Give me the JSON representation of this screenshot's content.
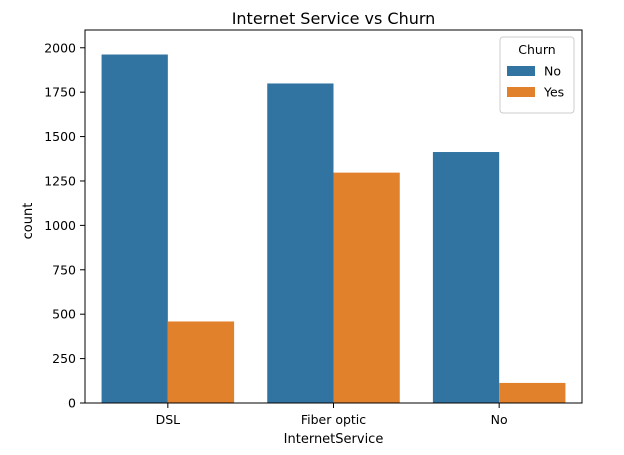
{
  "chart_data": {
    "type": "bar",
    "title": "Internet Service vs Churn",
    "xlabel": "InternetService",
    "ylabel": "count",
    "categories": [
      "DSL",
      "Fiber optic",
      "No"
    ],
    "series": [
      {
        "name": "No",
        "values": [
          1962,
          1799,
          1413
        ],
        "color": "#3274a1"
      },
      {
        "name": "Yes",
        "values": [
          459,
          1297,
          113
        ],
        "color": "#e1812c"
      }
    ],
    "ylim": [
      0,
      2100
    ],
    "yticks": [
      0,
      250,
      500,
      750,
      1000,
      1250,
      1500,
      1750,
      2000
    ],
    "legend": {
      "title": "Churn",
      "placement": "top-right"
    },
    "grid": false
  }
}
